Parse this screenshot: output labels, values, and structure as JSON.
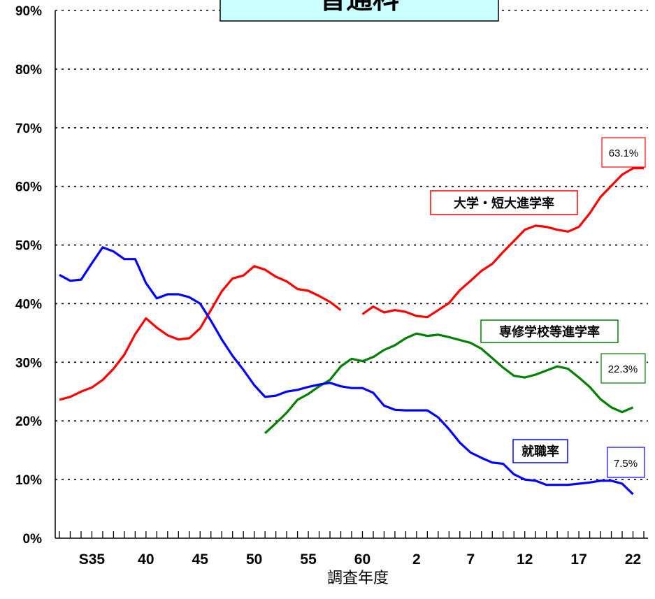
{
  "chart_data": {
    "type": "line",
    "title": "普通科",
    "xlabel": "調査年度",
    "ylabel": "",
    "ylim": [
      0,
      90
    ],
    "y_ticks": [
      "0%",
      "10%",
      "20%",
      "30%",
      "40%",
      "50%",
      "60%",
      "70%",
      "80%",
      "90%"
    ],
    "x_ticks": [
      "S35",
      "40",
      "45",
      "50",
      "55",
      "60",
      "2",
      "7",
      "12",
      "17",
      "22"
    ],
    "x_tick_index": [
      3,
      8,
      13,
      18,
      23,
      28,
      33,
      38,
      43,
      48,
      53
    ],
    "grid": "horizontal dotted",
    "series": [
      {
        "name": "大学・短大進学率",
        "color": "#ff0000",
        "end_label": "63.1%",
        "values": [
          23.6,
          24.1,
          25.0,
          25.7,
          27.0,
          28.9,
          31.3,
          34.8,
          37.5,
          35.9,
          34.6,
          33.9,
          34.1,
          35.8,
          38.9,
          42.1,
          44.3,
          44.8,
          46.4,
          45.8,
          44.6,
          43.8,
          42.5,
          42.2,
          41.3,
          40.3,
          38.9,
          null,
          38.2,
          39.5,
          38.5,
          38.9,
          38.6,
          37.9,
          37.7,
          38.9,
          40.1,
          42.3,
          43.9,
          45.6,
          46.8,
          48.8,
          50.7,
          52.6,
          53.3,
          53.1,
          52.6,
          52.3,
          53.1,
          55.4,
          58.2,
          60.1,
          62.0,
          63.1,
          63.1
        ]
      },
      {
        "name": "専修学校等進学率",
        "color": "#008000",
        "end_label": "22.3%",
        "values": [
          null,
          null,
          null,
          null,
          null,
          null,
          null,
          null,
          null,
          null,
          null,
          null,
          null,
          null,
          null,
          null,
          null,
          null,
          null,
          17.9,
          19.6,
          21.4,
          23.6,
          24.6,
          25.9,
          27.0,
          29.3,
          30.6,
          30.2,
          30.9,
          32.1,
          32.9,
          34.1,
          34.9,
          34.5,
          34.7,
          34.3,
          33.8,
          33.3,
          32.3,
          30.7,
          29.1,
          27.7,
          27.4,
          27.9,
          28.6,
          29.3,
          28.9,
          27.4,
          25.8,
          23.7,
          22.3,
          21.5,
          22.3,
          null
        ]
      },
      {
        "name": "就職率",
        "color": "#0000ff",
        "end_label": "7.5%",
        "values": [
          44.9,
          43.9,
          44.1,
          46.9,
          49.6,
          48.9,
          47.6,
          47.6,
          43.5,
          40.9,
          41.6,
          41.6,
          41.1,
          40.0,
          37.1,
          33.9,
          31.1,
          28.7,
          26.1,
          24.1,
          24.3,
          25.0,
          25.3,
          25.8,
          26.2,
          26.5,
          25.9,
          25.6,
          25.6,
          24.8,
          22.6,
          21.9,
          21.8,
          21.8,
          21.8,
          20.6,
          18.6,
          16.3,
          14.6,
          13.7,
          12.9,
          12.7,
          10.9,
          10.0,
          9.8,
          9.1,
          9.1,
          9.1,
          9.3,
          9.5,
          9.8,
          9.8,
          9.3,
          7.5,
          null
        ]
      }
    ]
  }
}
